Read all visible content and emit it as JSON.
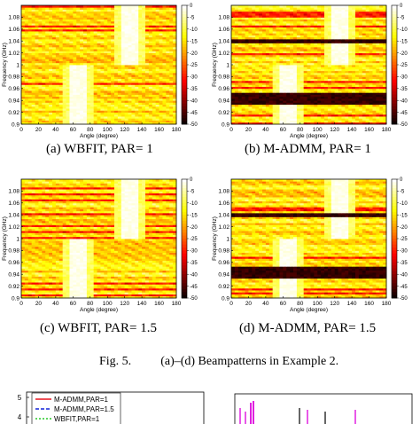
{
  "panels": [
    {
      "id": "a",
      "caption": "(a) WBFIT, PAR= 1"
    },
    {
      "id": "b",
      "caption": "(b) M-ADMM, PAR= 1"
    },
    {
      "id": "c",
      "caption": "(c) WBFIT, PAR= 1.5"
    },
    {
      "id": "d",
      "caption": "(d) M-ADMM, PAR= 1.5"
    }
  ],
  "figure_caption": {
    "label": "Fig. 5.",
    "text": "(a)–(d) Beampatterns in Example 2."
  },
  "chart_data": [
    {
      "type": "heatmap",
      "panel": "a",
      "xlabel": "Angle (degree)",
      "ylabel": "Frequency (GHz)",
      "xlim": [
        0,
        180
      ],
      "ylim": [
        0.9,
        1.1
      ],
      "xticks": [
        "0",
        "20",
        "40",
        "60",
        "80",
        "100",
        "120",
        "140",
        "160",
        "180"
      ],
      "yticks": [
        "0.9",
        "0.92",
        "0.94",
        "0.96",
        "0.98",
        "1",
        "1.02",
        "1.04",
        "1.06",
        "1.08"
      ],
      "colorbar": {
        "range": [
          -50,
          0
        ],
        "ticks": [
          "0",
          "-5",
          "-10",
          "-15",
          "-20",
          "-25",
          "-30",
          "-35",
          "-40",
          "-45",
          "-50"
        ],
        "unit": "dB"
      },
      "mainlobes": [
        {
          "angle_range": [
            55,
            75
          ],
          "freq_range": [
            0.9,
            1.0
          ]
        },
        {
          "angle_range": [
            115,
            135
          ],
          "freq_range": [
            1.0,
            1.1
          ]
        }
      ],
      "notches": []
    },
    {
      "type": "heatmap",
      "panel": "b",
      "xlabel": "Angle (degree)",
      "ylabel": "Frequency (GHz)",
      "xlim": [
        0,
        180
      ],
      "ylim": [
        0.9,
        1.1
      ],
      "xticks": [
        "0",
        "20",
        "40",
        "60",
        "80",
        "100",
        "120",
        "140",
        "160",
        "180"
      ],
      "yticks": [
        "0.9",
        "0.92",
        "0.94",
        "0.96",
        "0.98",
        "1",
        "1.02",
        "1.04",
        "1.06",
        "1.08"
      ],
      "colorbar": {
        "range": [
          -50,
          0
        ],
        "ticks": [
          "0",
          "-5",
          "-10",
          "-15",
          "-20",
          "-25",
          "-30",
          "-35",
          "-40",
          "-45",
          "-50"
        ],
        "unit": "dB"
      },
      "mainlobes": [
        {
          "angle_range": [
            55,
            75
          ],
          "freq_range": [
            0.9,
            1.0
          ]
        },
        {
          "angle_range": [
            115,
            135
          ],
          "freq_range": [
            1.0,
            1.1
          ]
        }
      ],
      "notches": [
        {
          "freq_range": [
            1.037,
            1.043
          ]
        },
        {
          "freq_range": [
            0.935,
            0.952
          ]
        }
      ]
    },
    {
      "type": "heatmap",
      "panel": "c",
      "xlabel": "Angle (degree)",
      "ylabel": "Frequency (GHz)",
      "xlim": [
        0,
        180
      ],
      "ylim": [
        0.9,
        1.1
      ],
      "xticks": [
        "0",
        "20",
        "40",
        "60",
        "80",
        "100",
        "120",
        "140",
        "160",
        "180"
      ],
      "yticks": [
        "0.9",
        "0.92",
        "0.94",
        "0.96",
        "0.98",
        "1",
        "1.02",
        "1.04",
        "1.06",
        "1.08"
      ],
      "colorbar": {
        "range": [
          -50,
          0
        ],
        "ticks": [
          "0",
          "-5",
          "-10",
          "-15",
          "-20",
          "-25",
          "-30",
          "-35",
          "-40",
          "-45",
          "-50"
        ],
        "unit": "dB"
      },
      "mainlobes": [
        {
          "angle_range": [
            55,
            75
          ],
          "freq_range": [
            0.9,
            1.0
          ]
        },
        {
          "angle_range": [
            115,
            135
          ],
          "freq_range": [
            1.0,
            1.1
          ]
        }
      ],
      "notches": []
    },
    {
      "type": "heatmap",
      "panel": "d",
      "xlabel": "Angle (degree)",
      "ylabel": "Frequency (GHz)",
      "xlim": [
        0,
        180
      ],
      "ylim": [
        0.9,
        1.1
      ],
      "xticks": [
        "0",
        "20",
        "40",
        "60",
        "80",
        "100",
        "120",
        "140",
        "160",
        "180"
      ],
      "yticks": [
        "0.9",
        "0.92",
        "0.94",
        "0.96",
        "0.98",
        "1",
        "1.02",
        "1.04",
        "1.06",
        "1.08"
      ],
      "colorbar": {
        "range": [
          -50,
          0
        ],
        "ticks": [
          "0",
          "-5",
          "-10",
          "-15",
          "-20",
          "-25",
          "-30",
          "-35",
          "-40",
          "-45",
          "-50"
        ],
        "unit": "dB"
      },
      "mainlobes": [
        {
          "angle_range": [
            55,
            75
          ],
          "freq_range": [
            0.9,
            1.0
          ]
        },
        {
          "angle_range": [
            115,
            135
          ],
          "freq_range": [
            1.0,
            1.1
          ]
        }
      ],
      "notches": [
        {
          "freq_range": [
            1.037,
            1.043
          ]
        },
        {
          "freq_range": [
            0.935,
            0.952
          ]
        }
      ]
    },
    {
      "type": "line",
      "panel": "bottom-left",
      "yticks": [
        "5",
        "4"
      ],
      "legend": [
        "M-ADMM,PAR=1",
        "M-ADMM,PAR=1.5",
        "WBFIT,PAR=1"
      ],
      "legend_colors": [
        "#e8141e",
        "#1424d8",
        "#28c828"
      ]
    },
    {
      "type": "line",
      "panel": "bottom-right",
      "colors": [
        "#e020e0",
        "#000000"
      ]
    }
  ]
}
